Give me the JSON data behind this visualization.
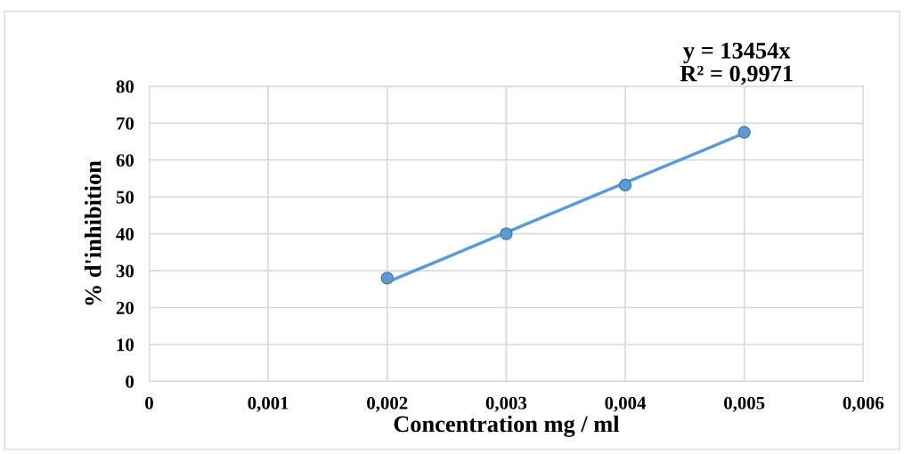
{
  "chart_data": {
    "type": "scatter",
    "xlabel": "Concentration mg / ml",
    "ylabel": "% d'inhibition",
    "annotations": [
      "y = 13454x\nR² = 0,9971"
    ],
    "series": [
      {
        "color": "#5b9bd5",
        "x": [
          0.002,
          0.003,
          0.004,
          0.005
        ],
        "values": [
          28,
          40,
          53.2,
          67.5
        ],
        "marker": "circle"
      },
      {
        "type": "line",
        "color": "#5b9bd5",
        "x": [
          0.002,
          0.005
        ],
        "values": [
          26.9,
          67.3
        ],
        "marker": "none",
        "line_style": "solid"
      }
    ],
    "xlim": [
      0,
      0.006
    ],
    "ylim": [
      0,
      80
    ],
    "xticks": [
      0,
      {
        "value": 0.001,
        "label": "0,001"
      },
      {
        "value": 0.002,
        "label": "0,002"
      },
      {
        "value": 0.003,
        "label": "0,003"
      },
      {
        "value": 0.004,
        "label": "0,004"
      },
      {
        "value": 0.005,
        "label": "0,005"
      },
      {
        "value": 0.006,
        "label": "0,006"
      }
    ],
    "yticks": [
      0,
      10,
      20,
      30,
      40,
      50,
      60,
      70,
      80
    ],
    "grid": true
  }
}
